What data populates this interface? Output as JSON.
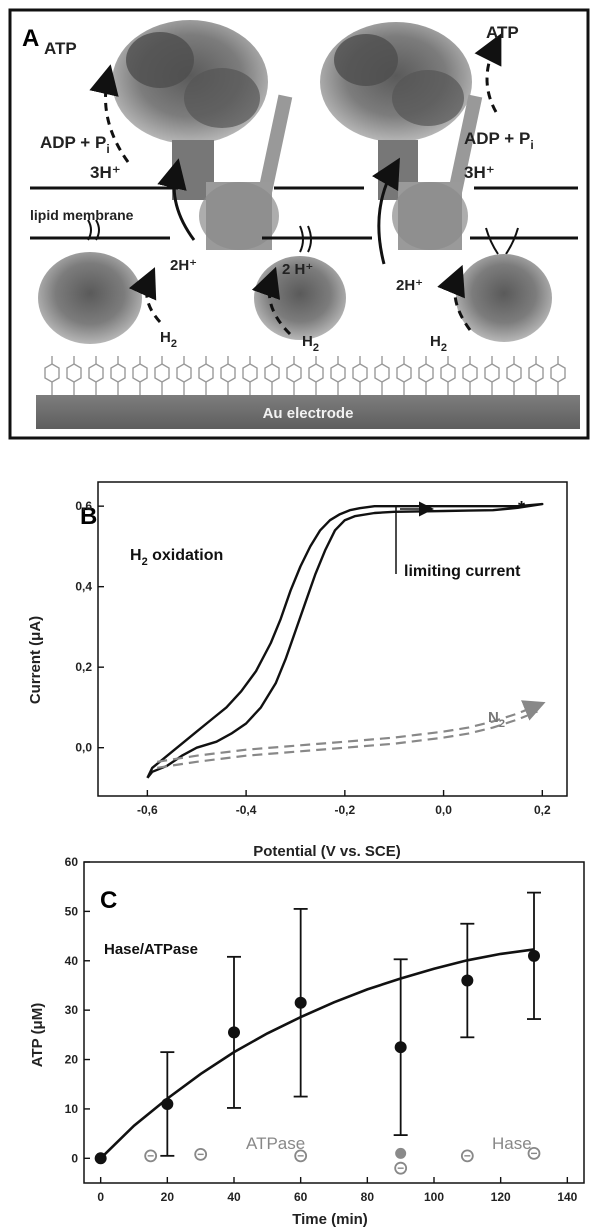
{
  "panelA": {
    "letter": "A",
    "labels": {
      "atp_left": "ATP",
      "atp_right": "ATP",
      "adp_left": "ADP + P",
      "adp_right": "ADP + P",
      "pi_sub": "i",
      "three_h_left": "3H⁺",
      "three_h_right": "3H⁺",
      "lipid": "lipid membrane",
      "two_h_1": "2H⁺",
      "two_h_2": "2 H⁺",
      "two_h_3": "2H⁺",
      "h2_main": "H",
      "h2_sub": "2",
      "electrode": "Au electrode"
    },
    "colors": {
      "electrode": "#6e6e6e",
      "protein": "#8a8a8a",
      "membrane": "#111111"
    }
  },
  "chart_data": [
    {
      "panel": "B",
      "type": "line",
      "xlabel": "Potential (V vs. SCE)",
      "ylabel": "Current (μA)",
      "xlim": [
        -0.7,
        0.25
      ],
      "ylim": [
        -0.12,
        0.66
      ],
      "xticks": [
        -0.6,
        -0.4,
        -0.2,
        0.0,
        0.2
      ],
      "xtick_labels": [
        "-0,6",
        "-0,4",
        "-0,2",
        "0,0",
        "0,2"
      ],
      "yticks": [
        0.0,
        0.2,
        0.4,
        0.6
      ],
      "ytick_labels": [
        "0,0",
        "0,2",
        "0,4",
        "0,6"
      ],
      "annotations": {
        "h2_ox_main": "H",
        "h2_ox_sub": "2",
        "h2_ox_rest": " oxidation",
        "limiting": "limiting current",
        "n2_main": "N",
        "n2_sub": "2",
        "star": "*"
      },
      "series": [
        {
          "style": "solid",
          "x": [
            -0.6,
            -0.59,
            -0.57,
            -0.55,
            -0.53,
            -0.5,
            -0.47,
            -0.44,
            -0.41,
            -0.38,
            -0.35,
            -0.33,
            -0.31,
            -0.29,
            -0.27,
            -0.25,
            -0.23,
            -0.21,
            -0.19,
            -0.17,
            -0.14,
            -0.1,
            -0.05,
            0.0,
            0.05,
            0.1,
            0.15,
            0.2,
            0.2,
            0.15,
            0.1,
            0.05,
            0.0,
            -0.05,
            -0.1,
            -0.14,
            -0.18,
            -0.2,
            -0.22,
            -0.24,
            -0.26,
            -0.28,
            -0.3,
            -0.32,
            -0.34,
            -0.37,
            -0.4,
            -0.43,
            -0.46,
            -0.5,
            -0.53,
            -0.56,
            -0.59,
            -0.6
          ],
          "y": [
            -0.075,
            -0.05,
            -0.03,
            -0.01,
            0.01,
            0.04,
            0.07,
            0.1,
            0.14,
            0.19,
            0.26,
            0.32,
            0.39,
            0.45,
            0.5,
            0.54,
            0.565,
            0.58,
            0.59,
            0.595,
            0.6,
            0.6,
            0.6,
            0.6,
            0.6,
            0.6,
            0.6,
            0.605,
            0.605,
            0.596,
            0.59,
            0.589,
            0.588,
            0.587,
            0.586,
            0.583,
            0.575,
            0.565,
            0.54,
            0.49,
            0.43,
            0.36,
            0.29,
            0.22,
            0.16,
            0.1,
            0.06,
            0.035,
            0.015,
            0.0,
            -0.02,
            -0.045,
            -0.06,
            -0.075
          ]
        },
        {
          "name": "N2",
          "style": "dashed",
          "x": [
            -0.58,
            -0.5,
            -0.4,
            -0.3,
            -0.2,
            -0.1,
            0.0,
            0.05,
            0.1,
            0.15,
            0.19
          ],
          "y": [
            -0.035,
            -0.02,
            -0.005,
            0.005,
            0.015,
            0.025,
            0.04,
            0.05,
            0.065,
            0.085,
            0.105
          ]
        },
        {
          "name": "N2",
          "style": "dashed",
          "x": [
            -0.58,
            -0.5,
            -0.4,
            -0.3,
            -0.2,
            -0.1,
            0.0,
            0.05,
            0.1,
            0.15,
            0.19
          ],
          "y": [
            -0.05,
            -0.035,
            -0.02,
            -0.01,
            0.0,
            0.01,
            0.025,
            0.035,
            0.05,
            0.07,
            0.09
          ]
        }
      ]
    },
    {
      "panel": "C",
      "type": "scatter",
      "xlabel": "Time (min)",
      "ylabel": "ATP (μM)",
      "xlim": [
        -5,
        145
      ],
      "ylim": [
        -5,
        60
      ],
      "xticks": [
        0,
        20,
        40,
        60,
        80,
        100,
        120,
        140
      ],
      "yticks": [
        0,
        10,
        20,
        30,
        40,
        50,
        60
      ],
      "annotations": {
        "hase_atpase": "Hase/ATPase",
        "atpase": "ATPase",
        "hase": "Hase"
      },
      "series": [
        {
          "name": "Hase/ATPase",
          "x": [
            0,
            20,
            40,
            60,
            90,
            110,
            130
          ],
          "y": [
            0,
            11,
            25.5,
            31.5,
            22.5,
            36,
            41
          ],
          "err": [
            0,
            10.5,
            15.3,
            19,
            17.8,
            11.5,
            12.8
          ]
        },
        {
          "name": "ATPase",
          "x": [
            15,
            30,
            60,
            90
          ],
          "y": [
            0.5,
            0.8,
            0.5,
            -2
          ]
        },
        {
          "name": "Hase",
          "x": [
            110,
            130
          ],
          "y": [
            0.5,
            1
          ]
        },
        {
          "x": [
            90
          ],
          "y": [
            1
          ]
        }
      ],
      "fit": {
        "x": [
          0,
          10,
          20,
          30,
          40,
          50,
          60,
          70,
          80,
          90,
          100,
          110,
          120,
          130
        ],
        "y": [
          0,
          6.6,
          12.1,
          17.1,
          21.5,
          25.3,
          28.6,
          31.6,
          34.2,
          36.4,
          38.4,
          40.1,
          41.4,
          42.3
        ]
      }
    }
  ]
}
